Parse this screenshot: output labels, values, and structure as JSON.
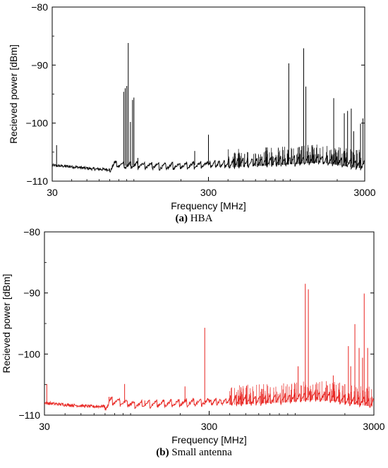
{
  "chart_data": [
    {
      "type": "line",
      "caption_tag": "(a)",
      "caption_text": "HBA",
      "xlabel": "Frequency [MHz]",
      "ylabel": "Recieved power [dBm]",
      "xscale": "log",
      "xlim": [
        30,
        3000
      ],
      "ylim": [
        -110,
        -80
      ],
      "xticks": [
        30,
        300,
        3000
      ],
      "xtick_labels": [
        "30",
        "300",
        "3000"
      ],
      "yticks": [
        -110,
        -100,
        -90,
        -80
      ],
      "ytick_labels": [
        "−110",
        "−100",
        "−90",
        "−80"
      ],
      "grid": false,
      "minor_xticks": true,
      "series": [
        {
          "color": "#000000",
          "baseline": [
            [
              30,
              -107.3
            ],
            [
              40,
              -107.5
            ],
            [
              55,
              -107.9
            ],
            [
              70,
              -108.0
            ],
            [
              75,
              -107.0
            ],
            [
              90,
              -107.4
            ],
            [
              110,
              -107.2
            ],
            [
              150,
              -107.5
            ],
            [
              200,
              -107.3
            ],
            [
              280,
              -107.2
            ],
            [
              400,
              -107.0
            ],
            [
              600,
              -106.8
            ],
            [
              900,
              -106.6
            ],
            [
              1300,
              -106.3
            ],
            [
              1600,
              -106.2
            ],
            [
              2000,
              -106.6
            ],
            [
              2500,
              -107.0
            ],
            [
              3000,
              -107.2
            ]
          ],
          "peaks": [
            [
              32,
              -103.8
            ],
            [
              86,
              -94.6
            ],
            [
              88,
              -94.0
            ],
            [
              90,
              -93.6
            ],
            [
              92,
              -86.2
            ],
            [
              95,
              -99.8
            ],
            [
              98,
              -96.0
            ],
            [
              100,
              -95.6
            ],
            [
              106,
              -106.0
            ],
            [
              245,
              -104.8
            ],
            [
              300,
              -102.0
            ],
            [
              980,
              -89.7
            ],
            [
              1220,
              -87.1
            ],
            [
              1260,
              -93.7
            ],
            [
              1900,
              -95.7
            ],
            [
              2220,
              -98.3
            ],
            [
              2330,
              -97.9
            ],
            [
              2460,
              -97.5
            ],
            [
              2550,
              -101.4
            ],
            [
              2820,
              -100.1
            ],
            [
              2920,
              -99.2
            ]
          ]
        }
      ]
    },
    {
      "type": "line",
      "caption_tag": "(b)",
      "caption_text": "Small antenna",
      "xlabel": "Frequency [MHz]",
      "ylabel": "Recieved power [dBm]",
      "xscale": "log",
      "xlim": [
        30,
        3000
      ],
      "ylim": [
        -110,
        -80
      ],
      "xticks": [
        30,
        300,
        3000
      ],
      "xtick_labels": [
        "30",
        "300",
        "3000"
      ],
      "yticks": [
        -110,
        -100,
        -90,
        -80
      ],
      "ytick_labels": [
        "−110",
        "−100",
        "−90",
        "−80"
      ],
      "grid": false,
      "minor_xticks": true,
      "series": [
        {
          "color": "#e8231f",
          "baseline": [
            [
              30,
              -108.0
            ],
            [
              40,
              -108.3
            ],
            [
              60,
              -108.6
            ],
            [
              72,
              -108.5
            ],
            [
              75,
              -107.6
            ],
            [
              90,
              -108.0
            ],
            [
              110,
              -108.3
            ],
            [
              150,
              -108.1
            ],
            [
              200,
              -108.0
            ],
            [
              280,
              -107.9
            ],
            [
              400,
              -107.7
            ],
            [
              600,
              -107.5
            ],
            [
              900,
              -107.3
            ],
            [
              1300,
              -106.9
            ],
            [
              1700,
              -107.1
            ],
            [
              2200,
              -107.6
            ],
            [
              3000,
              -108.0
            ]
          ],
          "peaks": [
            [
              31,
              -104.9
            ],
            [
              74,
              -107.0
            ],
            [
              92,
              -104.9
            ],
            [
              122,
              -107.6
            ],
            [
              214,
              -105.3
            ],
            [
              282,
              -95.7
            ],
            [
              1040,
              -102.0
            ],
            [
              1150,
              -88.5
            ],
            [
              1200,
              -89.4
            ],
            [
              1700,
              -103.5
            ],
            [
              2100,
              -98.7
            ],
            [
              2170,
              -102.0
            ],
            [
              2300,
              -95.1
            ],
            [
              2440,
              -99.0
            ],
            [
              2560,
              -100.6
            ],
            [
              2620,
              -90.1
            ],
            [
              2750,
              -99.0
            ]
          ]
        }
      ]
    }
  ]
}
